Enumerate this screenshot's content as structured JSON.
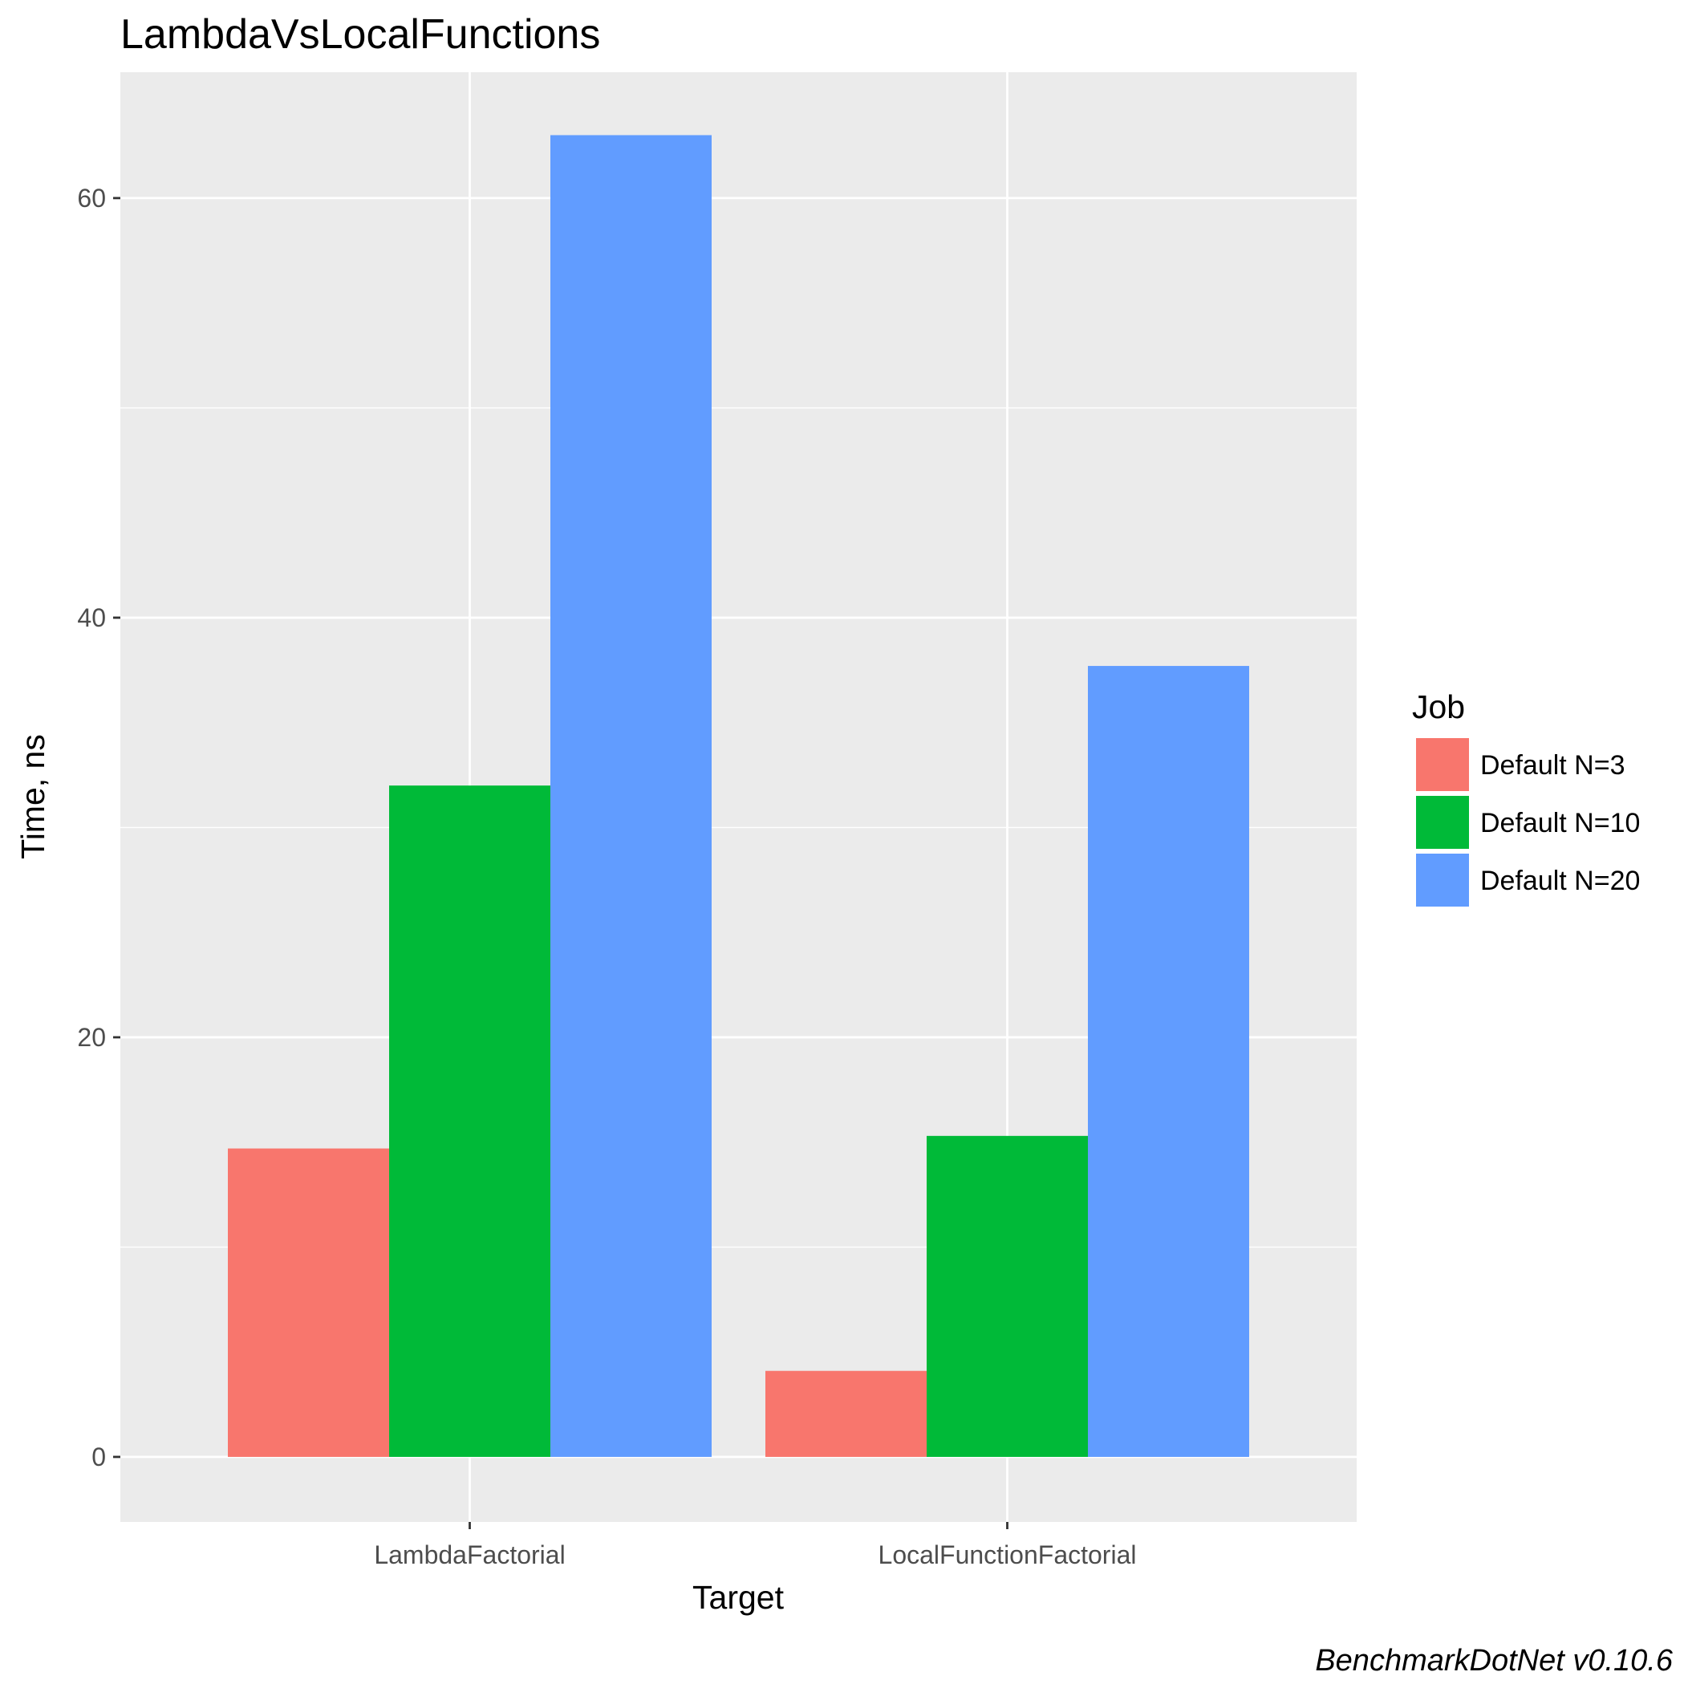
{
  "chart_data": {
    "type": "bar",
    "title": "LambdaVsLocalFunctions",
    "xlabel": "Target",
    "ylabel": "Time, ns",
    "caption": "BenchmarkDotNet v0.10.6",
    "categories": [
      "LambdaFactorial",
      "LocalFunctionFactorial"
    ],
    "series": [
      {
        "name": "Default N=3",
        "color": "#F8766D",
        "values": [
          14.7,
          4.1
        ]
      },
      {
        "name": "Default N=10",
        "color": "#00BA38",
        "values": [
          32.0,
          15.3
        ]
      },
      {
        "name": "Default N=20",
        "color": "#619CFF",
        "values": [
          63.0,
          37.7
        ]
      }
    ],
    "ylim": [
      -3.1,
      66.0
    ],
    "yticks": [
      0,
      20,
      40,
      60
    ],
    "legend": {
      "title": "Job",
      "position": "right"
    },
    "grid": true,
    "panel_background": "#EBEBEB"
  }
}
